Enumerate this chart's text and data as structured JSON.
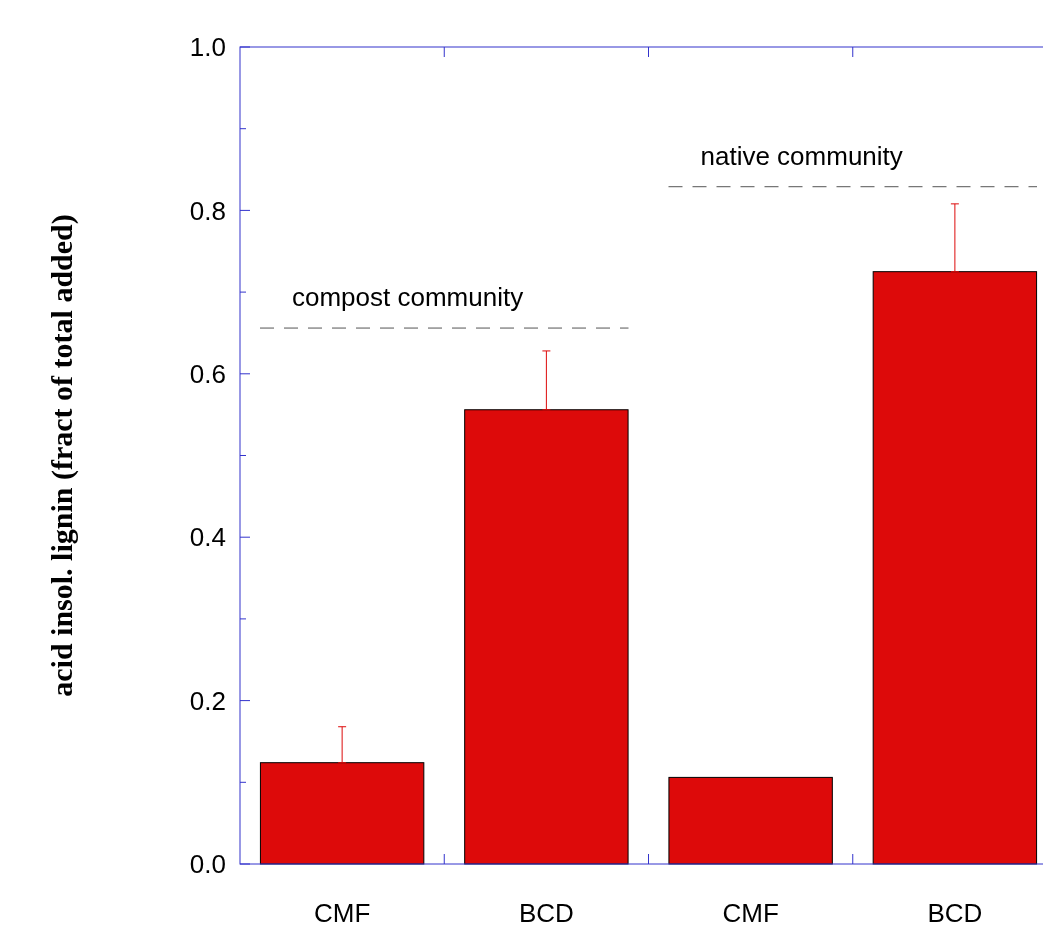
{
  "chart_data": {
    "type": "bar",
    "ylabel": "acid insol. lignin (fract of total added)",
    "categories": [
      "CMF",
      "BCD",
      "CMF",
      "BCD"
    ],
    "values": [
      0.124,
      0.556,
      0.106,
      0.725
    ],
    "errors": [
      [
        0.124,
        0.168
      ],
      [
        0.556,
        0.628
      ],
      null,
      [
        0.725,
        0.808
      ]
    ],
    "color": "#dd0a0a",
    "ylim": [
      0,
      1
    ],
    "yticks": [
      {
        "value": 0,
        "label": "0.0"
      },
      {
        "value": 0.1,
        "label": null
      },
      {
        "value": 0.2,
        "label": "0.2"
      },
      {
        "value": 0.3,
        "label": null
      },
      {
        "value": 0.4,
        "label": "0.4"
      },
      {
        "value": 0.5,
        "label": null
      },
      {
        "value": 0.6,
        "label": "0.6"
      },
      {
        "value": 0.7,
        "label": null
      },
      {
        "value": 0.8,
        "label": "0.8"
      },
      {
        "value": 0.9,
        "label": null
      },
      {
        "value": 1,
        "label": "1.0"
      }
    ],
    "ref_lines": [
      {
        "axis": "y",
        "value": 0.656,
        "label": "compost community",
        "color": "#555555",
        "line_style": "dashed"
      },
      {
        "axis": "y",
        "value": 0.829,
        "label": "native community",
        "color": "#555555",
        "line_style": "dashed"
      }
    ],
    "grid": false
  }
}
